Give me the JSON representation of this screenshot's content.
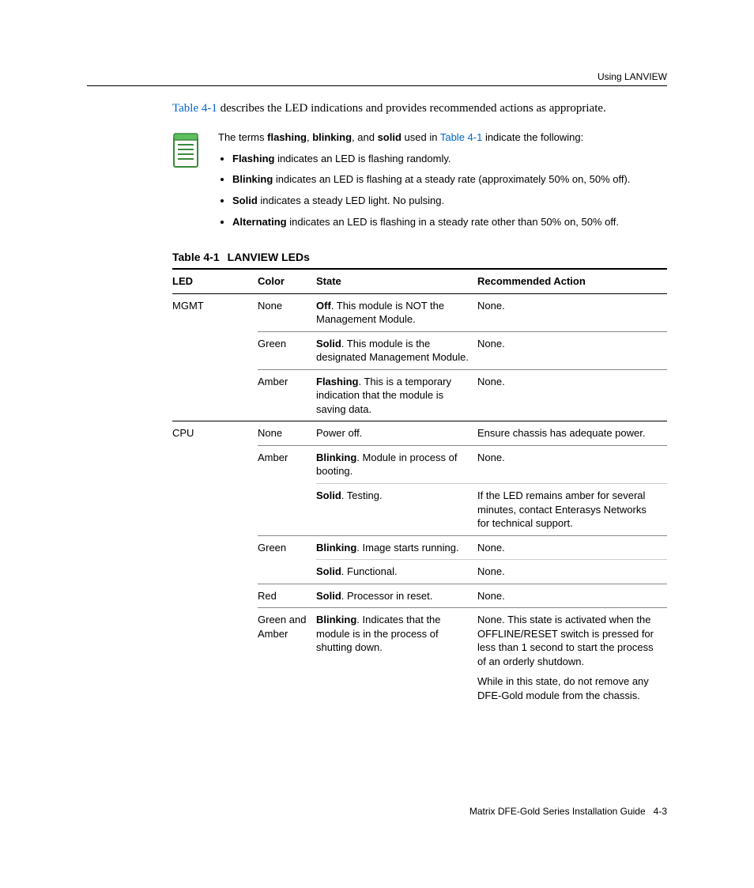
{
  "header": {
    "section": "Using LANVIEW"
  },
  "intro": {
    "link_text": "Table 4-1",
    "rest": " describes the LED indications and provides recommended actions as appropriate."
  },
  "note": {
    "lead_pre": "The terms ",
    "terms": [
      "flashing",
      "blinking",
      "solid"
    ],
    "lead_mid": " used in ",
    "lead_link": "Table 4-1",
    "lead_post": " indicate the following:",
    "bullets": [
      {
        "label": "Flashing",
        "text": " indicates an LED is flashing randomly."
      },
      {
        "label": "Blinking",
        "text": " indicates an LED is flashing at a steady rate (approximately 50% on, 50% off)."
      },
      {
        "label": "Solid",
        "text": " indicates a steady LED light. No pulsing."
      },
      {
        "label": "Alternating",
        "text": " indicates an LED is flashing in a steady rate other than 50% on, 50% off."
      }
    ]
  },
  "table": {
    "caption_num": "Table 4-1",
    "caption_title": "LANVIEW LEDs",
    "headers": {
      "led": "LED",
      "color": "Color",
      "state": "State",
      "action": "Recommended Action"
    },
    "rows": [
      {
        "led": "MGMT",
        "color": "None",
        "state_bold": "Off",
        "state_rest": ". This module is NOT the Management Module.",
        "action": [
          "None."
        ],
        "border": "color"
      },
      {
        "led": "",
        "color": "Green",
        "state_bold": "Solid",
        "state_rest": ". This module is the designated Management Module.",
        "action": [
          "None."
        ],
        "border": "color"
      },
      {
        "led": "",
        "color": "Amber",
        "state_bold": "Flashing",
        "state_rest": ". This is a temporary indication that the module is saving data.",
        "action": [
          "None."
        ],
        "border": "led"
      },
      {
        "led": "CPU",
        "color": "None",
        "state_bold": "",
        "state_rest": "Power off.",
        "action": [
          "Ensure chassis has adequate power."
        ],
        "border": "color"
      },
      {
        "led": "",
        "color": "Amber",
        "state_bold": "Blinking",
        "state_rest": ". Module in process of booting.",
        "action": [
          "None."
        ],
        "border": "state"
      },
      {
        "led": "",
        "color": "",
        "state_bold": "Solid",
        "state_rest": ". Testing.",
        "action": [
          "If the LED remains amber for several minutes, contact Enterasys Networks for technical support."
        ],
        "border": "color"
      },
      {
        "led": "",
        "color": "Green",
        "state_bold": "Blinking",
        "state_rest": ". Image starts running.",
        "action": [
          "None."
        ],
        "border": "state"
      },
      {
        "led": "",
        "color": "",
        "state_bold": "Solid",
        "state_rest": ". Functional.",
        "action": [
          "None."
        ],
        "border": "color"
      },
      {
        "led": "",
        "color": "Red",
        "state_bold": "Solid",
        "state_rest": ". Processor in reset.",
        "action": [
          "None."
        ],
        "border": "color"
      },
      {
        "led": "",
        "color": "Green and Amber",
        "state_bold": "Blinking",
        "state_rest": ". Indicates that the module is in the process of shutting down.",
        "action": [
          "None. This state is activated when the OFFLINE/RESET switch is pressed for less than 1 second to start the process of an orderly shutdown.",
          "While in this state, do not remove any DFE-Gold module from the chassis."
        ],
        "border": ""
      }
    ]
  },
  "footer": {
    "book": "Matrix DFE-Gold Series Installation Guide",
    "page": "4-3"
  },
  "colors": {
    "link": "#0066cc",
    "icon_border": "#3a8a3a",
    "icon_fill": "#5fbf5f"
  }
}
